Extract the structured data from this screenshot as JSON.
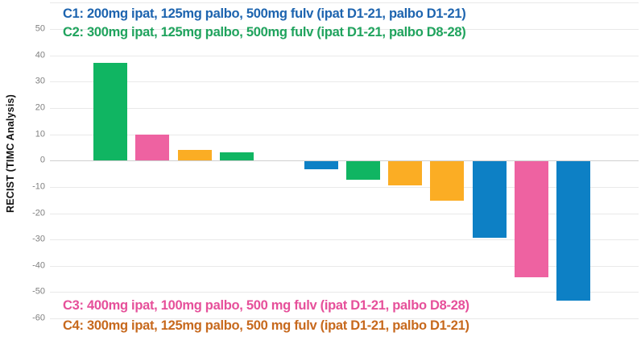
{
  "page": {
    "background": "#ffffff"
  },
  "y_axis": {
    "title": "RECIST (TIMC Analysis)",
    "ticks": [
      "50",
      "40",
      "30",
      "20",
      "10",
      "0",
      "-10",
      "-20",
      "-30",
      "-40",
      "-50",
      "-60"
    ],
    "tick_color": "#7f7f7f",
    "title_color": "#111111"
  },
  "legend": {
    "top": [
      {
        "id": "C1",
        "label": "C1: 200mg ipat, 125mg palbo, 500mg fulv (ipat D1-21, palbo D1-21)",
        "color": "#1d64af"
      },
      {
        "id": "C2",
        "label": "C2: 300mg ipat, 125mg palbo, 500mg fulv (ipat D1-21, palbo D8-28)",
        "color": "#1fa35d"
      }
    ],
    "bottom": [
      {
        "id": "C3",
        "label": "C3: 400mg ipat, 100mg palbo, 500 mg fulv (ipat D1-21, palbo D8-28)",
        "color": "#e6509a"
      },
      {
        "id": "C4",
        "label": "C4: 300mg ipat, 125mg palbo, 500 mg fulv (ipat D1-21, palbo D1-21)",
        "color": "#c7691d"
      }
    ]
  },
  "chart_data": {
    "type": "bar",
    "subtype": "waterfall",
    "title": "",
    "xlabel": "",
    "ylabel": "RECIST (TIMC Analysis)",
    "ylim": [
      -60,
      50
    ],
    "ytick_step": 10,
    "grid": true,
    "legend_position": "overlay top-left and bottom-left",
    "series_colors": {
      "C1": "#0d80c5",
      "C2": "#10b562",
      "C3": "#ee62a1",
      "C4": "#fbad24"
    },
    "slot_count": 12,
    "empty_slots": [
      4
    ],
    "bars": [
      {
        "slot": 0,
        "cohort": "C2",
        "value": 37
      },
      {
        "slot": 1,
        "cohort": "C3",
        "value": 10
      },
      {
        "slot": 2,
        "cohort": "C4",
        "value": 4
      },
      {
        "slot": 3,
        "cohort": "C2",
        "value": 3
      },
      {
        "slot": 5,
        "cohort": "C1",
        "value": -3
      },
      {
        "slot": 6,
        "cohort": "C2",
        "value": -7
      },
      {
        "slot": 7,
        "cohort": "C4",
        "value": -9
      },
      {
        "slot": 8,
        "cohort": "C4",
        "value": -15
      },
      {
        "slot": 9,
        "cohort": "C1",
        "value": -29
      },
      {
        "slot": 10,
        "cohort": "C3",
        "value": -44
      },
      {
        "slot": 11,
        "cohort": "C1",
        "value": -53
      }
    ]
  }
}
